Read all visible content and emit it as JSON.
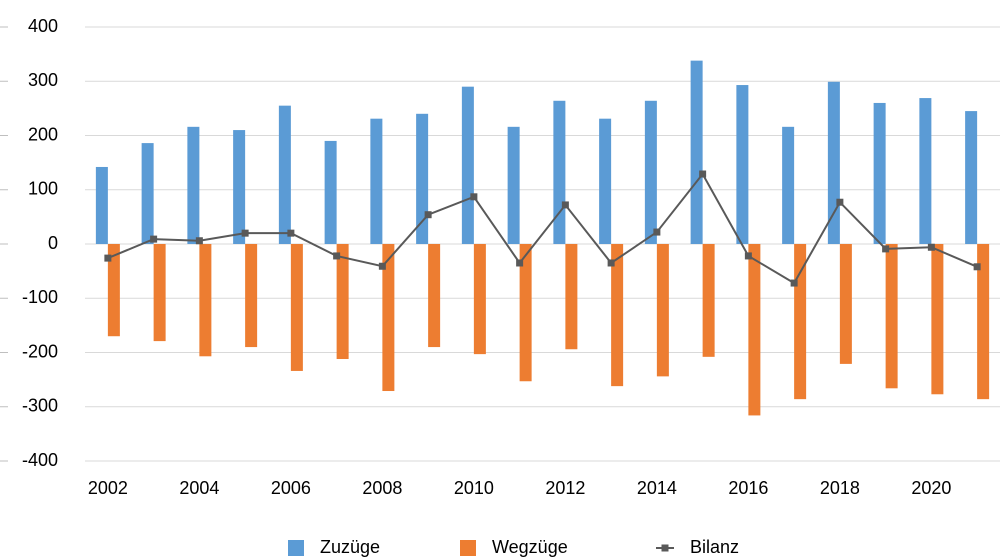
{
  "chart_data": {
    "type": "bar-line",
    "categories": [
      "2002",
      null,
      "2004",
      null,
      "2006",
      null,
      "2008",
      null,
      "2010",
      null,
      "2012",
      null,
      "2014",
      null,
      "2016",
      null,
      "2018",
      null,
      "2020",
      null
    ],
    "series": [
      {
        "name": "Zuzüge",
        "color": "#5b9bd5",
        "type": "bar",
        "values": [
          142,
          186,
          216,
          210,
          255,
          190,
          231,
          240,
          290,
          216,
          264,
          231,
          264,
          338,
          293,
          216,
          299,
          260,
          269,
          245
        ]
      },
      {
        "name": "Wegzüge",
        "color": "#ed7d31",
        "type": "bar",
        "values": [
          -170,
          -179,
          -207,
          -190,
          -234,
          -212,
          -271,
          -190,
          -203,
          -253,
          -194,
          -262,
          -244,
          -208,
          -316,
          -286,
          -221,
          -266,
          -277,
          -286
        ]
      },
      {
        "name": "Bilanz",
        "color": "#595959",
        "type": "line",
        "values": [
          -26,
          9,
          6,
          20,
          20,
          -22,
          -41,
          54,
          87,
          -35,
          72,
          -35,
          22,
          129,
          -22,
          -72,
          77,
          -9,
          -6,
          -42
        ]
      }
    ],
    "ylim": [
      -400,
      400
    ],
    "yticks": [
      -400,
      -300,
      -200,
      -100,
      0,
      100,
      200,
      300,
      400
    ],
    "grid": true,
    "legend": "bottom"
  }
}
